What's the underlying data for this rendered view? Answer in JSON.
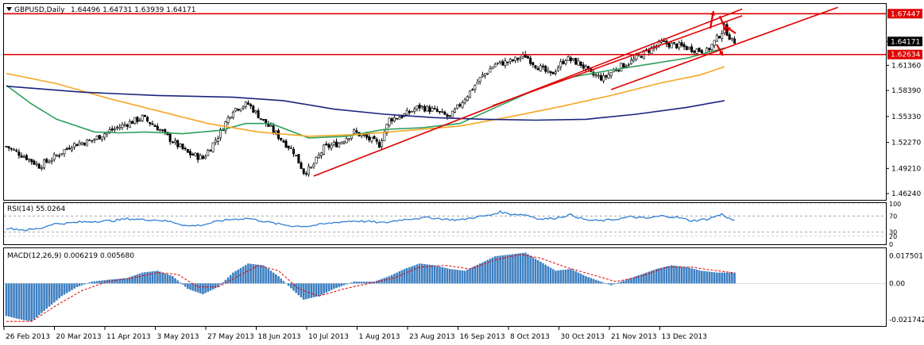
{
  "header": {
    "symbol_label": "GBPUSD,Daily",
    "ohlc": "1.64496 1.64731 1.63939 1.64171"
  },
  "colors": {
    "candle": "#000000",
    "ma_fast": "#2e9e5b",
    "ma_mid": "#f5a623",
    "ma_slow": "#1a237e",
    "trend": "#e00000",
    "hline": "#e00000",
    "rsi": "#2f7fd6",
    "macd_hist": "#3d7fc1",
    "macd_signal": "#e00000",
    "price_tag_bg": "#e00000",
    "price_tag_current": "#000000"
  },
  "main_panel": {
    "price_axis_ticks": [
      "1.64171",
      "1.61360",
      "1.58390",
      "1.55330",
      "1.52270",
      "1.49210",
      "1.46240"
    ],
    "red_line_tags": [
      "1.67447",
      "1.62634"
    ],
    "current_price": "1.64171"
  },
  "rsi_panel": {
    "label": "RSI(14) 55.0264",
    "axis_ticks": [
      "100",
      "70",
      "30",
      "20",
      "0"
    ]
  },
  "macd_panel": {
    "label": "MACD(12,26,9) 0.006219 0.005680",
    "axis_ticks": [
      "0.017501",
      "0.00",
      "-0.021742"
    ]
  },
  "time_axis": [
    "26 Feb 2013",
    "20 Mar 2013",
    "11 Apr 2013",
    "3 May 2013",
    "27 May 2013",
    "18 Jun 2013",
    "10 Jul 2013",
    "1 Aug 2013",
    "23 Aug 2013",
    "16 Sep 2013",
    "8 Oct 2013",
    "30 Oct 2013",
    "21 Nov 2013",
    "13 Dec 2013"
  ],
  "chart_data": [
    {
      "type": "candlestick",
      "title": "GBPUSD,Daily",
      "ylim": [
        1.455,
        1.685
      ],
      "horizontal_levels": [
        1.67447,
        1.62634
      ],
      "close_anchors": [
        [
          0,
          1.518
        ],
        [
          8,
          1.505
        ],
        [
          13,
          1.495
        ],
        [
          19,
          1.505
        ],
        [
          26,
          1.52
        ],
        [
          34,
          1.525
        ],
        [
          40,
          1.535
        ],
        [
          48,
          1.545
        ],
        [
          54,
          1.552
        ],
        [
          60,
          1.54
        ],
        [
          66,
          1.524
        ],
        [
          72,
          1.51
        ],
        [
          78,
          1.504
        ],
        [
          84,
          1.53
        ],
        [
          90,
          1.562
        ],
        [
          96,
          1.568
        ],
        [
          102,
          1.548
        ],
        [
          108,
          1.53
        ],
        [
          114,
          1.512
        ],
        [
          118,
          1.488
        ],
        [
          121,
          1.492
        ],
        [
          126,
          1.516
        ],
        [
          132,
          1.522
        ],
        [
          138,
          1.535
        ],
        [
          143,
          1.528
        ],
        [
          148,
          1.52
        ],
        [
          152,
          1.55
        ],
        [
          158,
          1.555
        ],
        [
          164,
          1.565
        ],
        [
          170,
          1.56
        ],
        [
          176,
          1.552
        ],
        [
          182,
          1.575
        ],
        [
          188,
          1.598
        ],
        [
          194,
          1.615
        ],
        [
          200,
          1.618
        ],
        [
          206,
          1.625
        ],
        [
          210,
          1.614
        ],
        [
          216,
          1.602
        ],
        [
          222,
          1.622
        ],
        [
          228,
          1.615
        ],
        [
          232,
          1.603
        ],
        [
          237,
          1.598
        ],
        [
          242,
          1.61
        ],
        [
          248,
          1.618
        ],
        [
          254,
          1.63
        ],
        [
          260,
          1.64
        ],
        [
          266,
          1.637
        ],
        [
          272,
          1.633
        ],
        [
          278,
          1.63
        ],
        [
          282,
          1.645
        ],
        [
          285,
          1.658
        ],
        [
          288,
          1.642
        ]
      ],
      "series": [
        {
          "name": "",
          "kind": "ma_fast",
          "points": [
            [
              0,
              1.59
            ],
            [
              10,
              1.568
            ],
            [
              20,
              1.55
            ],
            [
              35,
              1.535
            ],
            [
              45,
              1.534
            ],
            [
              55,
              1.535
            ],
            [
              70,
              1.533
            ],
            [
              85,
              1.537
            ],
            [
              95,
              1.545
            ],
            [
              105,
              1.545
            ],
            [
              120,
              1.528
            ],
            [
              135,
              1.53
            ],
            [
              150,
              1.538
            ],
            [
              165,
              1.54
            ],
            [
              180,
              1.545
            ],
            [
              195,
              1.565
            ],
            [
              210,
              1.585
            ],
            [
              225,
              1.6
            ],
            [
              240,
              1.608
            ],
            [
              255,
              1.615
            ],
            [
              270,
              1.622
            ],
            [
              285,
              1.634
            ]
          ]
        },
        {
          "name": "",
          "kind": "ma_mid",
          "points": [
            [
              0,
              1.604
            ],
            [
              20,
              1.592
            ],
            [
              40,
              1.575
            ],
            [
              60,
              1.56
            ],
            [
              80,
              1.545
            ],
            [
              100,
              1.535
            ],
            [
              120,
              1.53
            ],
            [
              140,
              1.532
            ],
            [
              160,
              1.537
            ],
            [
              180,
              1.542
            ],
            [
              200,
              1.553
            ],
            [
              220,
              1.565
            ],
            [
              240,
              1.578
            ],
            [
              260,
              1.593
            ],
            [
              275,
              1.602
            ],
            [
              285,
              1.612
            ]
          ]
        },
        {
          "name": "",
          "kind": "ma_slow",
          "points": [
            [
              0,
              1.589
            ],
            [
              30,
              1.582
            ],
            [
              60,
              1.578
            ],
            [
              90,
              1.576
            ],
            [
              110,
              1.572
            ],
            [
              130,
              1.562
            ],
            [
              150,
              1.556
            ],
            [
              170,
              1.552
            ],
            [
              190,
              1.55
            ],
            [
              210,
              1.549
            ],
            [
              230,
              1.55
            ],
            [
              250,
              1.556
            ],
            [
              270,
              1.564
            ],
            [
              285,
              1.572
            ]
          ]
        }
      ],
      "trendlines": [
        {
          "from": [
            122,
            1.483
          ],
          "to": [
            292,
            1.68
          ]
        },
        {
          "from": [
            240,
            1.585
          ],
          "to": [
            330,
            1.682
          ]
        },
        {
          "from": [
            193,
            1.566
          ],
          "to": [
            292,
            1.672
          ]
        }
      ]
    },
    {
      "type": "line",
      "title": "RSI(14) 55.0264",
      "ylim": [
        0,
        100
      ],
      "levels": [
        70,
        30
      ],
      "series": [
        {
          "name": "",
          "points": [
            [
              0,
              40
            ],
            [
              8,
              35
            ],
            [
              14,
              40
            ],
            [
              18,
              50
            ],
            [
              24,
              52
            ],
            [
              30,
              55
            ],
            [
              36,
              57
            ],
            [
              42,
              58
            ],
            [
              48,
              63
            ],
            [
              54,
              61
            ],
            [
              60,
              60
            ],
            [
              66,
              55
            ],
            [
              72,
              45
            ],
            [
              78,
              48
            ],
            [
              84,
              57
            ],
            [
              90,
              62
            ],
            [
              96,
              64
            ],
            [
              102,
              57
            ],
            [
              108,
              50
            ],
            [
              114,
              45
            ],
            [
              120,
              45
            ],
            [
              126,
              50
            ],
            [
              132,
              55
            ],
            [
              138,
              58
            ],
            [
              144,
              56
            ],
            [
              150,
              53
            ],
            [
              156,
              60
            ],
            [
              162,
              64
            ],
            [
              168,
              66
            ],
            [
              174,
              62
            ],
            [
              180,
              60
            ],
            [
              186,
              67
            ],
            [
              192,
              72
            ],
            [
              196,
              80
            ],
            [
              200,
              75
            ],
            [
              206,
              73
            ],
            [
              212,
              62
            ],
            [
              218,
              65
            ],
            [
              224,
              73
            ],
            [
              230,
              60
            ],
            [
              236,
              58
            ],
            [
              242,
              62
            ],
            [
              248,
              68
            ],
            [
              254,
              64
            ],
            [
              260,
              70
            ],
            [
              266,
              67
            ],
            [
              272,
              58
            ],
            [
              278,
              62
            ],
            [
              284,
              74
            ],
            [
              288,
              60
            ]
          ]
        }
      ]
    },
    {
      "type": "bar",
      "title": "MACD(12,26,9) 0.006219 0.005680",
      "ylim": [
        -0.0235,
        0.019
      ],
      "histogram_anchors": [
        [
          0,
          -0.018
        ],
        [
          6,
          -0.02
        ],
        [
          10,
          -0.021
        ],
        [
          16,
          -0.014
        ],
        [
          22,
          -0.007
        ],
        [
          28,
          -0.002
        ],
        [
          34,
          0.001
        ],
        [
          40,
          0.002
        ],
        [
          48,
          0.003
        ],
        [
          54,
          0.006
        ],
        [
          60,
          0.007
        ],
        [
          66,
          0.004
        ],
        [
          72,
          -0.003
        ],
        [
          78,
          -0.006
        ],
        [
          84,
          -0.002
        ],
        [
          90,
          0.006
        ],
        [
          96,
          0.011
        ],
        [
          102,
          0.01
        ],
        [
          108,
          0.004
        ],
        [
          114,
          -0.004
        ],
        [
          118,
          -0.009
        ],
        [
          124,
          -0.007
        ],
        [
          130,
          -0.003
        ],
        [
          138,
          0.001
        ],
        [
          146,
          0.001
        ],
        [
          152,
          0.004
        ],
        [
          158,
          0.008
        ],
        [
          164,
          0.011
        ],
        [
          170,
          0.01
        ],
        [
          176,
          0.008
        ],
        [
          182,
          0.007
        ],
        [
          188,
          0.011
        ],
        [
          194,
          0.015
        ],
        [
          200,
          0.016
        ],
        [
          206,
          0.017
        ],
        [
          212,
          0.012
        ],
        [
          218,
          0.007
        ],
        [
          224,
          0.008
        ],
        [
          230,
          0.004
        ],
        [
          236,
          0.001
        ],
        [
          240,
          -0.001
        ],
        [
          246,
          0.002
        ],
        [
          252,
          0.005
        ],
        [
          258,
          0.008
        ],
        [
          264,
          0.01
        ],
        [
          270,
          0.009
        ],
        [
          276,
          0.007
        ],
        [
          282,
          0.006
        ],
        [
          288,
          0.006
        ]
      ],
      "signal_anchors": [
        [
          0,
          -0.021
        ],
        [
          10,
          -0.021
        ],
        [
          20,
          -0.012
        ],
        [
          30,
          -0.004
        ],
        [
          40,
          0.001
        ],
        [
          50,
          0.003
        ],
        [
          60,
          0.006
        ],
        [
          68,
          0.005
        ],
        [
          76,
          -0.002
        ],
        [
          84,
          -0.002
        ],
        [
          92,
          0.004
        ],
        [
          100,
          0.01
        ],
        [
          108,
          0.007
        ],
        [
          116,
          -0.003
        ],
        [
          124,
          -0.007
        ],
        [
          134,
          -0.003
        ],
        [
          144,
          0.0
        ],
        [
          154,
          0.003
        ],
        [
          164,
          0.009
        ],
        [
          174,
          0.01
        ],
        [
          184,
          0.008
        ],
        [
          194,
          0.013
        ],
        [
          204,
          0.016
        ],
        [
          212,
          0.014
        ],
        [
          222,
          0.009
        ],
        [
          232,
          0.005
        ],
        [
          242,
          0.001
        ],
        [
          252,
          0.004
        ],
        [
          262,
          0.009
        ],
        [
          272,
          0.009
        ],
        [
          282,
          0.007
        ],
        [
          288,
          0.006
        ]
      ]
    }
  ]
}
